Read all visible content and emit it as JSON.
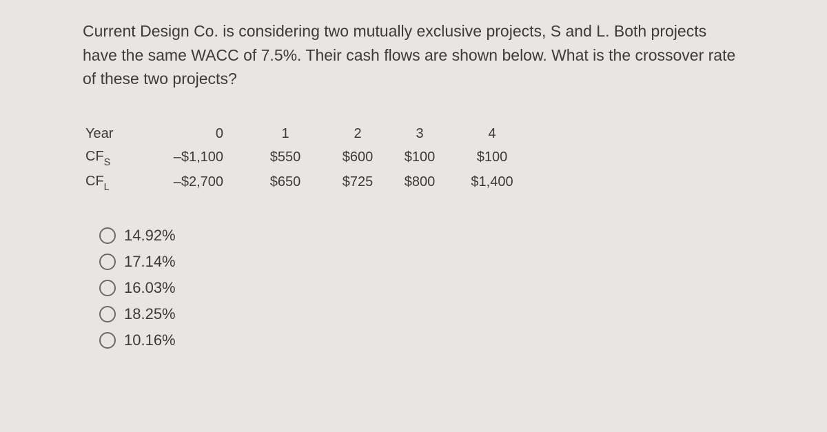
{
  "question_text": "Current Design Co. is considering two mutually exclusive projects, S and L. Both projects have the same WACC of 7.5%. Their cash flows are shown below. What is the crossover rate of these two projects?",
  "table": {
    "header_label": "Year",
    "years": [
      "0",
      "1",
      "2",
      "3",
      "4"
    ],
    "row_s": {
      "label_prefix": "CF",
      "label_sub": "S",
      "values": [
        "–$1,100",
        "$550",
        "$600",
        "$100",
        "$100"
      ]
    },
    "row_l": {
      "label_prefix": "CF",
      "label_sub": "L",
      "values": [
        "–$2,700",
        "$650",
        "$725",
        "$800",
        "$1,400"
      ]
    }
  },
  "options": [
    "14.92%",
    "17.14%",
    "16.03%",
    "18.25%",
    "10.16%"
  ],
  "colors": {
    "background": "#e8e6e2",
    "text": "#3b3a39",
    "radio_border": "#6b6a68"
  }
}
